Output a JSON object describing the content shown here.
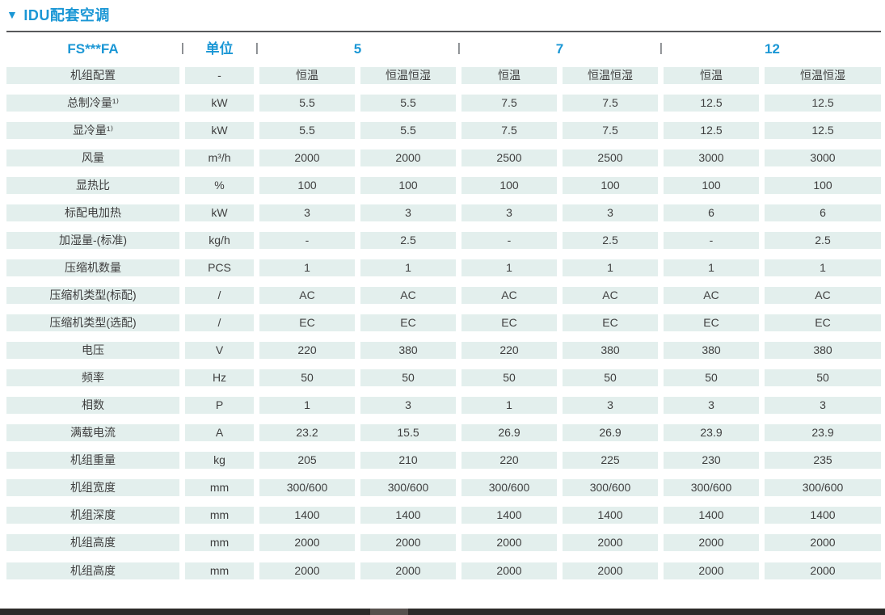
{
  "title": {
    "marker": "▼",
    "text": "IDU配套空调"
  },
  "table": {
    "model_header": "FS***FA",
    "unit_header": "单位",
    "column_separator": "|",
    "group_headers": [
      "5",
      "7",
      "12"
    ],
    "sub_columns": [
      "恒温",
      "恒温恒湿"
    ],
    "rows": [
      {
        "label": "机组配置",
        "unit": "-",
        "values": [
          "恒温",
          "恒温恒湿",
          "恒温",
          "恒温恒湿",
          "恒温",
          "恒温恒湿"
        ]
      },
      {
        "label": "总制冷量¹⁾",
        "unit": "kW",
        "values": [
          "5.5",
          "5.5",
          "7.5",
          "7.5",
          "12.5",
          "12.5"
        ]
      },
      {
        "label": "显冷量¹⁾",
        "unit": "kW",
        "values": [
          "5.5",
          "5.5",
          "7.5",
          "7.5",
          "12.5",
          "12.5"
        ]
      },
      {
        "label": "风量",
        "unit": "m³/h",
        "values": [
          "2000",
          "2000",
          "2500",
          "2500",
          "3000",
          "3000"
        ]
      },
      {
        "label": "显热比",
        "unit": "%",
        "values": [
          "100",
          "100",
          "100",
          "100",
          "100",
          "100"
        ]
      },
      {
        "label": "标配电加热",
        "unit": "kW",
        "values": [
          "3",
          "3",
          "3",
          "3",
          "6",
          "6"
        ]
      },
      {
        "label": "加湿量-(标准)",
        "unit": "kg/h",
        "values": [
          "-",
          "2.5",
          "-",
          "2.5",
          "-",
          "2.5"
        ]
      },
      {
        "label": "压缩机数量",
        "unit": "PCS",
        "values": [
          "1",
          "1",
          "1",
          "1",
          "1",
          "1"
        ]
      },
      {
        "label": "压缩机类型(标配)",
        "unit": "/",
        "values": [
          "AC",
          "AC",
          "AC",
          "AC",
          "AC",
          "AC"
        ]
      },
      {
        "label": "压缩机类型(选配)",
        "unit": "/",
        "values": [
          "EC",
          "EC",
          "EC",
          "EC",
          "EC",
          "EC"
        ]
      },
      {
        "label": "电压",
        "unit": "V",
        "values": [
          "220",
          "380",
          "220",
          "380",
          "380",
          "380"
        ]
      },
      {
        "label": "频率",
        "unit": "Hz",
        "values": [
          "50",
          "50",
          "50",
          "50",
          "50",
          "50"
        ]
      },
      {
        "label": "相数",
        "unit": "P",
        "values": [
          "1",
          "3",
          "1",
          "3",
          "3",
          "3"
        ]
      },
      {
        "label": "满载电流",
        "unit": "A",
        "values": [
          "23.2",
          "15.5",
          "26.9",
          "26.9",
          "23.9",
          "23.9"
        ]
      },
      {
        "label": "机组重量",
        "unit": "kg",
        "values": [
          "205",
          "210",
          "220",
          "225",
          "230",
          "235"
        ]
      },
      {
        "label": "机组宽度",
        "unit": "mm",
        "values": [
          "300/600",
          "300/600",
          "300/600",
          "300/600",
          "300/600",
          "300/600"
        ]
      },
      {
        "label": "机组深度",
        "unit": "mm",
        "values": [
          "1400",
          "1400",
          "1400",
          "1400",
          "1400",
          "1400"
        ]
      },
      {
        "label": "机组高度",
        "unit": "mm",
        "values": [
          "2000",
          "2000",
          "2000",
          "2000",
          "2000",
          "2000"
        ],
        "spaced": false
      },
      {
        "label": "机组高度",
        "unit": "mm",
        "values": [
          "2000",
          "2000",
          "2000",
          "2000",
          "2000",
          "2000"
        ],
        "spaced": true
      }
    ]
  },
  "colors": {
    "accent_blue": "#1b97d5",
    "cell_background": "#e3efed",
    "cell_text": "#3f3f3f",
    "rule_line": "#58595b",
    "scrollbar_track": "#2d2a28",
    "scrollbar_thumb": "#56514d"
  }
}
